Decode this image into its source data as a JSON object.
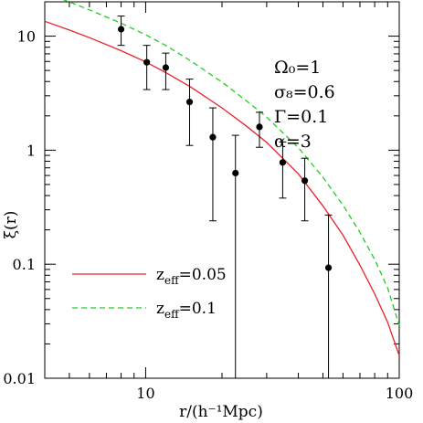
{
  "chart_data": {
    "type": "scatter",
    "xlabel": "r/(h⁻¹Mpc)",
    "ylabel": "ξ(r)",
    "xscale": "log",
    "yscale": "log",
    "xlim": [
      4,
      100
    ],
    "ylim": [
      0.01,
      20
    ],
    "x_tick_labels": [
      "10",
      "100"
    ],
    "y_tick_labels": [
      "0.01",
      "0.1",
      "1",
      "10"
    ],
    "parameters": [
      "Ω₀=1",
      "σ₈=0.6",
      "Γ=0.1",
      "α=3"
    ],
    "points": [
      {
        "x": 8.0,
        "y": 11.5,
        "ylo": 8.3,
        "yhi": 15.0
      },
      {
        "x": 10.1,
        "y": 5.9,
        "ylo": 3.4,
        "yhi": 8.3
      },
      {
        "x": 12.0,
        "y": 5.3,
        "ylo": 3.4,
        "yhi": 7.1
      },
      {
        "x": 14.9,
        "y": 2.65,
        "ylo": 1.1,
        "yhi": 4.2
      },
      {
        "x": 18.4,
        "y": 1.3,
        "ylo": 0.24,
        "yhi": 2.35
      },
      {
        "x": 22.6,
        "y": 0.63,
        "ylo": 0.01,
        "yhi": 1.35
      },
      {
        "x": 28.1,
        "y": 1.6,
        "ylo": 1.06,
        "yhi": 2.15
      },
      {
        "x": 34.7,
        "y": 0.78,
        "ylo": 0.38,
        "yhi": 1.18
      },
      {
        "x": 42.4,
        "y": 0.54,
        "ylo": 0.24,
        "yhi": 0.85
      },
      {
        "x": 52.6,
        "y": 0.093,
        "ylo": 0.01,
        "yhi": 0.27
      }
    ],
    "series": [
      {
        "name": "z_eff=0.05",
        "label_main": "z",
        "label_sub": "eff",
        "label_value": "=0.05",
        "color": "#e8202a",
        "style": "solid",
        "x": [
          4,
          5,
          6,
          8,
          10,
          12,
          15,
          20,
          25,
          30,
          40,
          50,
          60,
          70,
          80,
          90,
          100
        ],
        "y": [
          13.5,
          11.3,
          9.7,
          7.45,
          5.95,
          4.8,
          3.6,
          2.35,
          1.62,
          1.17,
          0.62,
          0.325,
          0.18,
          0.098,
          0.055,
          0.031,
          0.0158
        ]
      },
      {
        "name": "z_eff=0.1",
        "label_main": "z",
        "label_sub": "eff",
        "label_value": "=0.1",
        "color": "#22cc22",
        "style": "dashed",
        "x": [
          4,
          5,
          6,
          8,
          10,
          12,
          15,
          20,
          25,
          30,
          40,
          50,
          60,
          70,
          80,
          90,
          100
        ],
        "y": [
          24.0,
          20.0,
          17.0,
          13.0,
          10.3,
          8.3,
          6.1,
          3.95,
          2.7,
          1.95,
          1.05,
          0.58,
          0.33,
          0.19,
          0.11,
          0.062,
          0.029
        ]
      }
    ]
  }
}
